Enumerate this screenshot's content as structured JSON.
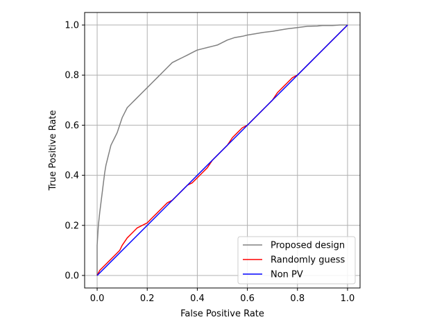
{
  "chart_data": {
    "type": "line",
    "title": "",
    "xlabel": "False Positive Rate",
    "ylabel": "True Positive Rate",
    "xlim": [
      -0.05,
      1.05
    ],
    "ylim": [
      -0.05,
      1.05
    ],
    "x_ticks": [
      0.0,
      0.2,
      0.4,
      0.6,
      0.8,
      1.0
    ],
    "y_ticks": [
      0.0,
      0.2,
      0.4,
      0.6,
      0.8,
      1.0
    ],
    "x_tick_labels": [
      "0.0",
      "0.2",
      "0.4",
      "0.6",
      "0.8",
      "1.0"
    ],
    "y_tick_labels": [
      "0.0",
      "0.2",
      "0.4",
      "0.6",
      "0.8",
      "1.0"
    ],
    "grid": true,
    "legend_position": "lower-right",
    "series": [
      {
        "name": "Proposed design",
        "color": "#808080",
        "x": [
          0.0,
          0.0,
          0.005,
          0.01,
          0.015,
          0.02,
          0.025,
          0.03,
          0.035,
          0.04,
          0.045,
          0.05,
          0.055,
          0.06,
          0.07,
          0.08,
          0.09,
          0.1,
          0.11,
          0.12,
          0.13,
          0.14,
          0.15,
          0.16,
          0.18,
          0.2,
          0.22,
          0.24,
          0.26,
          0.28,
          0.3,
          0.32,
          0.34,
          0.36,
          0.38,
          0.4,
          0.42,
          0.44,
          0.46,
          0.48,
          0.5,
          0.52,
          0.55,
          0.58,
          0.6,
          0.63,
          0.66,
          0.7,
          0.73,
          0.76,
          0.8,
          0.84,
          0.88,
          0.9,
          0.94,
          0.97,
          1.0
        ],
        "y": [
          0.0,
          0.12,
          0.2,
          0.25,
          0.29,
          0.33,
          0.37,
          0.41,
          0.44,
          0.46,
          0.48,
          0.5,
          0.52,
          0.53,
          0.55,
          0.57,
          0.6,
          0.63,
          0.65,
          0.67,
          0.68,
          0.69,
          0.7,
          0.71,
          0.73,
          0.75,
          0.77,
          0.79,
          0.81,
          0.83,
          0.85,
          0.86,
          0.87,
          0.88,
          0.89,
          0.9,
          0.905,
          0.91,
          0.915,
          0.92,
          0.93,
          0.94,
          0.95,
          0.955,
          0.96,
          0.965,
          0.97,
          0.975,
          0.98,
          0.985,
          0.99,
          0.995,
          0.996,
          0.998,
          0.998,
          1.0,
          1.0
        ]
      },
      {
        "name": "Randomly guess",
        "color": "#ff0000",
        "x": [
          0.0,
          0.01,
          0.03,
          0.05,
          0.07,
          0.09,
          0.1,
          0.12,
          0.14,
          0.16,
          0.18,
          0.2,
          0.22,
          0.24,
          0.26,
          0.28,
          0.3,
          0.32,
          0.34,
          0.36,
          0.38,
          0.4,
          0.42,
          0.44,
          0.46,
          0.48,
          0.5,
          0.52,
          0.54,
          0.56,
          0.58,
          0.6,
          0.62,
          0.64,
          0.66,
          0.68,
          0.7,
          0.72,
          0.74,
          0.76,
          0.78,
          0.8,
          0.82,
          0.84,
          0.86,
          0.88,
          0.9,
          0.92,
          0.94,
          0.96,
          0.98,
          1.0
        ],
        "y": [
          0.0,
          0.02,
          0.04,
          0.06,
          0.08,
          0.1,
          0.12,
          0.15,
          0.17,
          0.19,
          0.2,
          0.21,
          0.23,
          0.25,
          0.27,
          0.29,
          0.3,
          0.32,
          0.34,
          0.36,
          0.37,
          0.39,
          0.41,
          0.43,
          0.46,
          0.48,
          0.5,
          0.52,
          0.55,
          0.57,
          0.59,
          0.6,
          0.62,
          0.64,
          0.66,
          0.68,
          0.7,
          0.73,
          0.75,
          0.77,
          0.79,
          0.8,
          0.82,
          0.84,
          0.86,
          0.88,
          0.9,
          0.92,
          0.94,
          0.96,
          0.98,
          1.0
        ]
      },
      {
        "name": "Non PV",
        "color": "#0000ff",
        "x": [
          0.0,
          1.0
        ],
        "y": [
          0.0,
          1.0
        ]
      }
    ]
  }
}
